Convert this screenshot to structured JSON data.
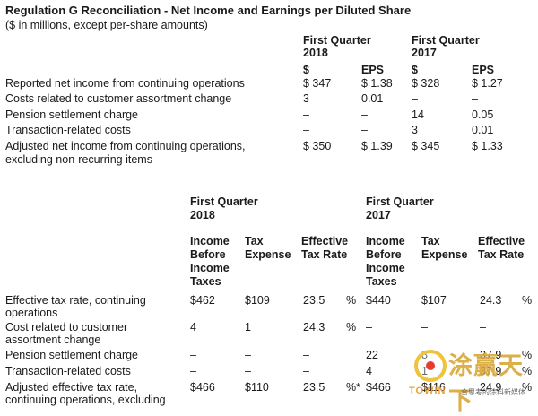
{
  "title": "Regulation G Reconciliation - Net Income and Earnings per Diluted Share",
  "subtitle": "($ in millions, except per-share amounts)",
  "table1": {
    "period_2018": [
      "First Quarter",
      "2018"
    ],
    "period_2017": [
      "First Quarter",
      "2017"
    ],
    "col_dollar": "$",
    "col_eps": "EPS",
    "rows": [
      {
        "label": [
          "Reported net income from continuing operations"
        ],
        "v": [
          "$ 347",
          "$ 1.38",
          "$ 328",
          "$ 1.27"
        ]
      },
      {
        "label": [
          "Costs related to customer assortment change"
        ],
        "v": [
          "3",
          "0.01",
          "–",
          "–"
        ]
      },
      {
        "label": [
          "Pension settlement charge"
        ],
        "v": [
          "–",
          "–",
          "14",
          "0.05"
        ]
      },
      {
        "label": [
          "Transaction-related costs"
        ],
        "v": [
          "–",
          "–",
          "3",
          "0.01"
        ]
      },
      {
        "label": [
          "Adjusted net income from continuing operations,",
          "excluding non-recurring items"
        ],
        "v": [
          "$ 350",
          "$ 1.39",
          "$ 345",
          "$ 1.33"
        ]
      }
    ]
  },
  "table2": {
    "period_2018": [
      "First Quarter",
      "2018"
    ],
    "period_2017": [
      "First Quarter",
      "2017"
    ],
    "col_income": [
      "Income",
      "Before",
      "Income",
      "Taxes"
    ],
    "col_tax": [
      "Tax",
      "Expense"
    ],
    "col_rate": [
      "Effective",
      "Tax Rate"
    ],
    "rows": [
      {
        "label": [
          "Effective tax rate, continuing",
          "operations"
        ],
        "v": [
          "$462",
          "$109",
          "23.5",
          "%",
          "$440",
          "$107",
          "24.3",
          "%"
        ]
      },
      {
        "label": [
          "Cost related to customer",
          "assortment change"
        ],
        "v": [
          "4",
          "1",
          "24.3",
          "%",
          "–",
          "–",
          "–",
          ""
        ]
      },
      {
        "label": [
          "Pension settlement charge"
        ],
        "v": [
          "–",
          "–",
          "–",
          "",
          "22",
          "8",
          "37.9",
          "%"
        ]
      },
      {
        "label": [
          "Transaction-related costs"
        ],
        "v": [
          "–",
          "–",
          "–",
          "",
          "4",
          "1",
          "37.9",
          "%"
        ]
      },
      {
        "label": [
          "Adjusted effective tax rate,",
          "continuing operations, excluding"
        ],
        "v": [
          "$466",
          "$110",
          "23.5",
          "%*",
          "$466",
          "$116",
          "24.9",
          "%"
        ]
      }
    ]
  },
  "watermark": {
    "cn": "涂赢天下",
    "en": "TOWIN",
    "sub": "合思考的涂料新媒体"
  }
}
